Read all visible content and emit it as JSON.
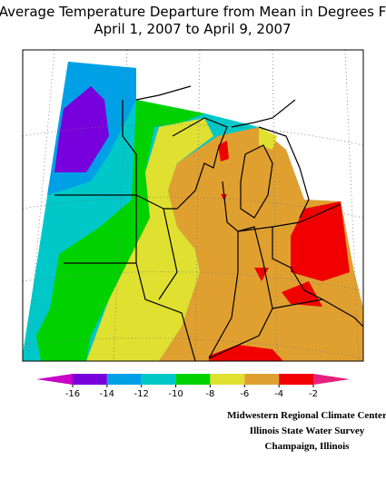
{
  "title": [
    "Average Temperature Departure from Mean in Degrees F",
    "April 1, 2007 to April 9, 2007"
  ],
  "legend": {
    "colors": [
      "#c800c8",
      "#7800dc",
      "#00a0e6",
      "#00c8c8",
      "#00d200",
      "#e0e030",
      "#e0a030",
      "#f00000",
      "#e8207c"
    ],
    "ticks": [
      -16,
      -14,
      -12,
      -10,
      -8,
      -6,
      -4,
      -2
    ]
  },
  "credits": [
    "Midwestern Regional Climate Center",
    "Illinois State Water Survey",
    "Champaign, Illinois"
  ]
}
